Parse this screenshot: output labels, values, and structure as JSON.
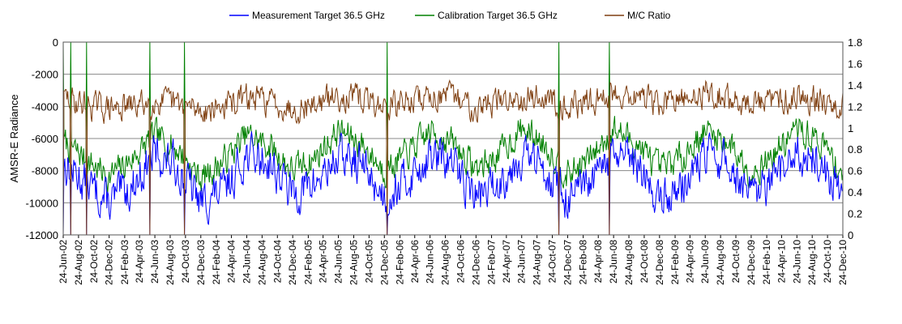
{
  "chart_data": {
    "type": "line",
    "ylabel": "AMSR-E Radiance",
    "y_left_range": [
      -12000,
      0
    ],
    "y_left_ticks": [
      "0",
      "-2000",
      "-4000",
      "-6000",
      "-8000",
      "-10000",
      "-12000"
    ],
    "y_right_range": [
      0,
      1.8
    ],
    "y_right_ticks": [
      "1.8",
      "1.6",
      "1.4",
      "1.2",
      "1",
      "0.8",
      "0.6",
      "0.4",
      "0.2",
      "0"
    ],
    "x_range": [
      "2002-06-24",
      "2010-12-24"
    ],
    "x_tick_labels": [
      "24-Jun-02",
      "24-Aug-02",
      "24-Oct-02",
      "24-Dec-02",
      "24-Feb-03",
      "24-Apr-03",
      "24-Jun-03",
      "24-Aug-03",
      "24-Oct-03",
      "24-Dec-03",
      "24-Feb-04",
      "24-Apr-04",
      "24-Jun-04",
      "24-Aug-04",
      "24-Oct-04",
      "24-Dec-04",
      "24-Feb-05",
      "24-Apr-05",
      "24-Jun-05",
      "24-Aug-05",
      "24-Oct-05",
      "24-Dec-05",
      "24-Feb-06",
      "24-Apr-06",
      "24-Jun-06",
      "24-Aug-06",
      "24-Oct-06",
      "24-Dec-06",
      "24-Feb-07",
      "24-Apr-07",
      "24-Jun-07",
      "24-Aug-07",
      "24-Oct-07",
      "24-Dec-07",
      "24-Feb-08",
      "24-Apr-08",
      "24-Jun-08",
      "24-Aug-08",
      "24-Oct-08",
      "24-Dec-08",
      "24-Feb-09",
      "24-Apr-09",
      "24-Jun-09",
      "24-Aug-09",
      "24-Oct-09",
      "24-Dec-09",
      "24-Feb-10",
      "24-Apr-10",
      "24-Jun-10",
      "24-Aug-10",
      "24-Oct-10",
      "24-Dec-10"
    ],
    "grid": true,
    "legend_position": "top",
    "series": [
      {
        "name": "Measurement Target 36.5 GHz",
        "color": "#0000ff",
        "axis": "left",
        "x": [
          "2002-06-24",
          "2002-09-24",
          "2002-12-24",
          "2003-03-24",
          "2003-06-24",
          "2003-09-24",
          "2003-12-24",
          "2004-03-24",
          "2004-06-24",
          "2004-09-24",
          "2004-12-24",
          "2005-03-24",
          "2005-06-24",
          "2005-09-24",
          "2005-12-24",
          "2006-03-24",
          "2006-06-24",
          "2006-09-24",
          "2006-12-24",
          "2007-03-24",
          "2007-06-24",
          "2007-09-24",
          "2007-12-24",
          "2008-03-24",
          "2008-06-24",
          "2008-09-24",
          "2008-12-24",
          "2009-03-24",
          "2009-06-24",
          "2009-09-24",
          "2009-12-24",
          "2010-03-24",
          "2010-06-24",
          "2010-09-24",
          "2010-12-24"
        ],
        "y": [
          -7500,
          -8800,
          -10000,
          -9000,
          -7000,
          -7800,
          -10000,
          -9300,
          -7000,
          -7500,
          -9500,
          -8800,
          -7100,
          -7600,
          -9600,
          -8600,
          -7100,
          -7600,
          -9600,
          -8800,
          -7000,
          -7800,
          -9800,
          -9000,
          -7000,
          -7700,
          -9800,
          -9000,
          -7000,
          -7600,
          -9800,
          -8800,
          -6800,
          -7500,
          -9700
        ]
      },
      {
        "name": "Calibration Target 36.5 GHz",
        "color": "#008000",
        "axis": "left",
        "x": [
          "2002-06-24",
          "2002-09-24",
          "2002-12-24",
          "2003-03-24",
          "2003-06-24",
          "2003-09-24",
          "2003-12-24",
          "2004-03-24",
          "2004-06-24",
          "2004-09-24",
          "2004-12-24",
          "2005-03-24",
          "2005-06-24",
          "2005-09-24",
          "2005-12-24",
          "2006-03-24",
          "2006-06-24",
          "2006-09-24",
          "2006-12-24",
          "2007-03-24",
          "2007-06-24",
          "2007-09-24",
          "2007-12-24",
          "2008-03-24",
          "2008-06-24",
          "2008-09-24",
          "2008-12-24",
          "2009-03-24",
          "2009-06-24",
          "2009-09-24",
          "2009-12-24",
          "2010-03-24",
          "2010-06-24",
          "2010-09-24",
          "2010-12-24"
        ],
        "y": [
          -6200,
          -7300,
          -8400,
          -7300,
          -5800,
          -6700,
          -8500,
          -7400,
          -5800,
          -6500,
          -8000,
          -7200,
          -5500,
          -6300,
          -8000,
          -7000,
          -5600,
          -6300,
          -7900,
          -7000,
          -5400,
          -6300,
          -8300,
          -7200,
          -5400,
          -6300,
          -8000,
          -7100,
          -5500,
          -6200,
          -8100,
          -7000,
          -5400,
          -6200,
          -8100
        ]
      },
      {
        "name": "M/C Ratio",
        "color": "#7f3f10",
        "axis": "right",
        "x": [
          "2002-06-24",
          "2002-09-24",
          "2002-12-24",
          "2003-03-24",
          "2003-06-24",
          "2003-09-24",
          "2003-12-24",
          "2004-03-24",
          "2004-06-24",
          "2004-09-24",
          "2004-12-24",
          "2005-03-24",
          "2005-06-24",
          "2005-09-24",
          "2005-12-24",
          "2006-03-24",
          "2006-06-24",
          "2006-09-24",
          "2006-12-24",
          "2007-03-24",
          "2007-06-24",
          "2007-09-24",
          "2007-12-24",
          "2008-03-24",
          "2008-06-24",
          "2008-09-24",
          "2008-12-24",
          "2009-03-24",
          "2009-06-24",
          "2009-09-24",
          "2009-12-24",
          "2010-03-24",
          "2010-06-24",
          "2010-09-24",
          "2010-12-24"
        ],
        "y": [
          1.28,
          1.22,
          1.18,
          1.2,
          1.25,
          1.22,
          1.16,
          1.2,
          1.28,
          1.25,
          1.18,
          1.22,
          1.3,
          1.27,
          1.2,
          1.24,
          1.3,
          1.28,
          1.2,
          1.24,
          1.3,
          1.28,
          1.2,
          1.24,
          1.33,
          1.3,
          1.22,
          1.25,
          1.33,
          1.27,
          1.22,
          1.25,
          1.3,
          1.27,
          1.22
        ]
      }
    ],
    "spikes": {
      "green_up": [
        "2002-06-24",
        "2002-07-24",
        "2002-09-24",
        "2003-06-04",
        "2003-10-20",
        "2006-01-05",
        "2007-11-18",
        "2008-06-08"
      ],
      "blue_down": [
        "2002-06-24",
        "2002-07-24",
        "2002-09-24",
        "2003-06-04",
        "2003-10-20",
        "2006-01-05",
        "2007-11-18",
        "2008-06-08"
      ],
      "ratio_to_zero": [
        "2002-06-24",
        "2002-07-24",
        "2002-09-24",
        "2003-06-04",
        "2003-10-20",
        "2006-01-05",
        "2007-11-18",
        "2008-06-08"
      ]
    }
  }
}
